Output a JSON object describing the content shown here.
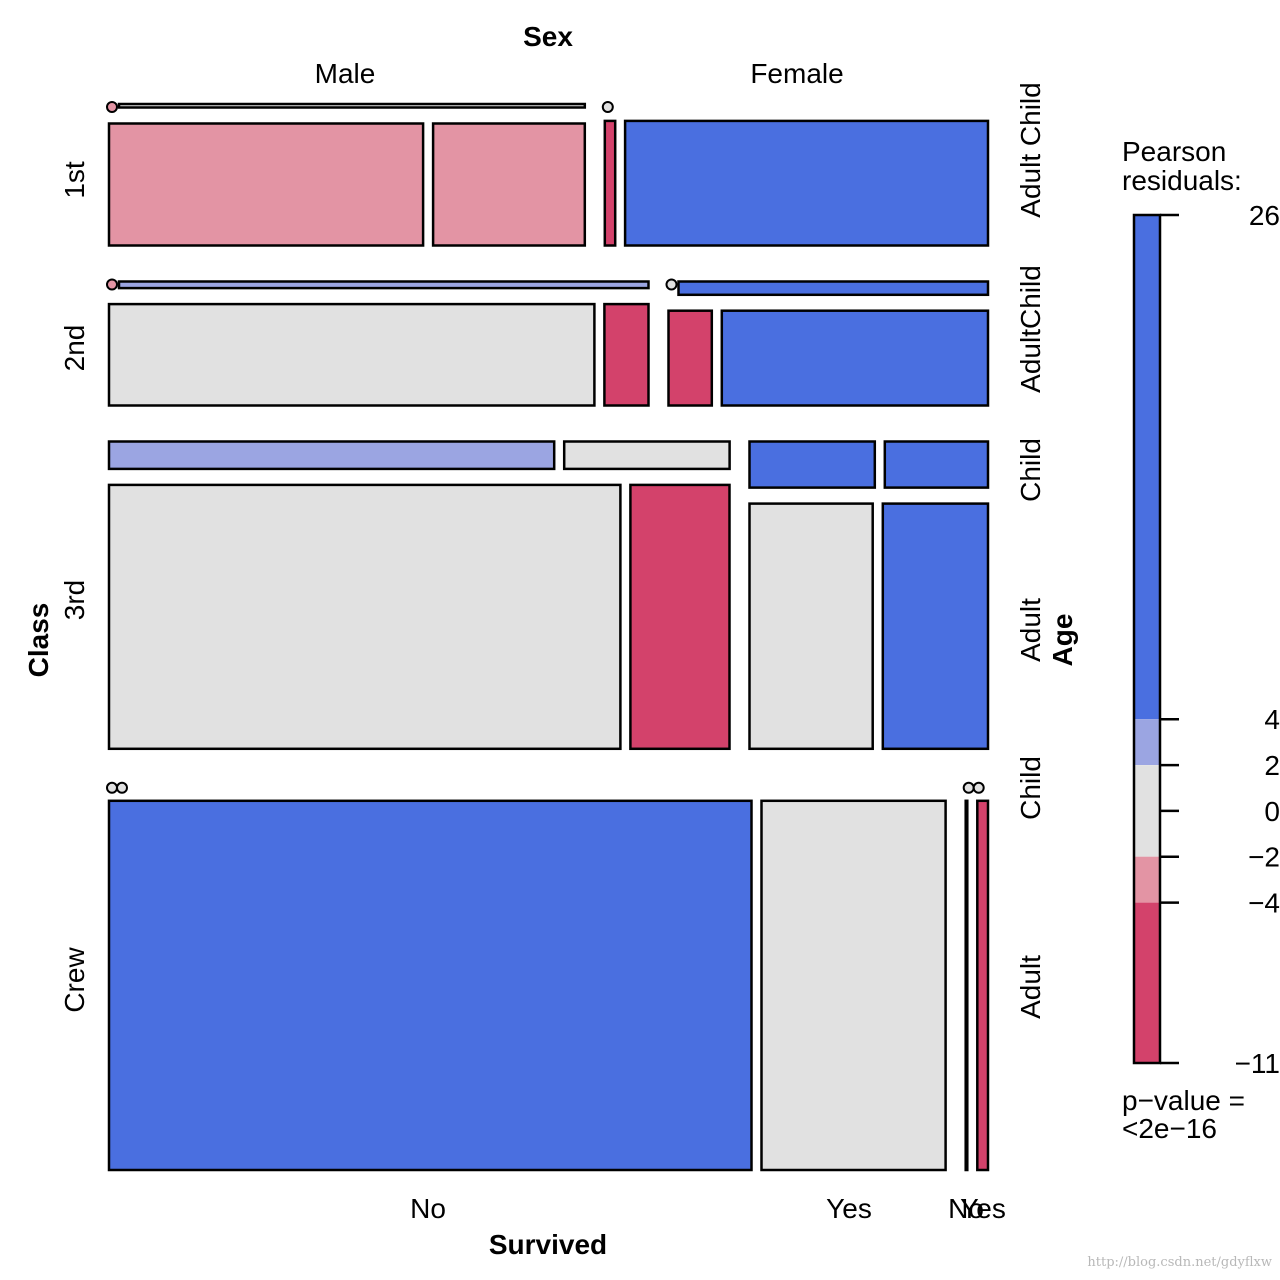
{
  "chart_data": {
    "type": "mosaic",
    "dimensions": [
      "Class",
      "Sex",
      "Age",
      "Survived"
    ],
    "axis_titles": {
      "sex": "Sex",
      "class": "Class",
      "age": "Age",
      "survived": "Survived"
    },
    "sex_levels": [
      "Male",
      "Female"
    ],
    "class_levels": [
      "1st",
      "2nd",
      "3rd",
      "Crew"
    ],
    "age_side_labels": [
      {
        "text": "Adult Child",
        "class": "1st"
      },
      {
        "text": "AdultChild",
        "class": "2nd"
      },
      {
        "text": "Child",
        "class": "3rd"
      },
      {
        "text": "Adult",
        "class": "3rd"
      },
      {
        "text": "Child",
        "class": "Crew"
      },
      {
        "text": "Adult",
        "class": "Crew"
      }
    ],
    "survived_tick_labels": [
      "No",
      "Yes",
      "No",
      "Yes"
    ],
    "cells": [
      {
        "class": "1st",
        "sex": "Male",
        "age": "Child",
        "survived": "No",
        "count": 0,
        "residual": -3
      },
      {
        "class": "1st",
        "sex": "Male",
        "age": "Child",
        "survived": "Yes",
        "count": 5,
        "residual": 0
      },
      {
        "class": "1st",
        "sex": "Male",
        "age": "Adult",
        "survived": "No",
        "count": 118,
        "residual": -3
      },
      {
        "class": "1st",
        "sex": "Male",
        "age": "Adult",
        "survived": "Yes",
        "count": 57,
        "residual": -3
      },
      {
        "class": "1st",
        "sex": "Female",
        "age": "Child",
        "survived": "No",
        "count": 0,
        "residual": 0
      },
      {
        "class": "1st",
        "sex": "Female",
        "age": "Child",
        "survived": "Yes",
        "count": 1,
        "residual": 0
      },
      {
        "class": "1st",
        "sex": "Female",
        "age": "Adult",
        "survived": "No",
        "count": 4,
        "residual": -6
      },
      {
        "class": "1st",
        "sex": "Female",
        "age": "Adult",
        "survived": "Yes",
        "count": 140,
        "residual": 10
      },
      {
        "class": "2nd",
        "sex": "Male",
        "age": "Child",
        "survived": "No",
        "count": 0,
        "residual": -3
      },
      {
        "class": "2nd",
        "sex": "Male",
        "age": "Child",
        "survived": "Yes",
        "count": 11,
        "residual": 3
      },
      {
        "class": "2nd",
        "sex": "Male",
        "age": "Adult",
        "survived": "No",
        "count": 154,
        "residual": 0
      },
      {
        "class": "2nd",
        "sex": "Male",
        "age": "Adult",
        "survived": "Yes",
        "count": 14,
        "residual": -6
      },
      {
        "class": "2nd",
        "sex": "Female",
        "age": "Child",
        "survived": "No",
        "count": 0,
        "residual": 0
      },
      {
        "class": "2nd",
        "sex": "Female",
        "age": "Child",
        "survived": "Yes",
        "count": 13,
        "residual": 6
      },
      {
        "class": "2nd",
        "sex": "Female",
        "age": "Adult",
        "survived": "No",
        "count": 13,
        "residual": -6
      },
      {
        "class": "2nd",
        "sex": "Female",
        "age": "Adult",
        "survived": "Yes",
        "count": 80,
        "residual": 10
      },
      {
        "class": "3rd",
        "sex": "Male",
        "age": "Child",
        "survived": "No",
        "count": 35,
        "residual": 3
      },
      {
        "class": "3rd",
        "sex": "Male",
        "age": "Child",
        "survived": "Yes",
        "count": 13,
        "residual": 0
      },
      {
        "class": "3rd",
        "sex": "Male",
        "age": "Adult",
        "survived": "No",
        "count": 387,
        "residual": 0
      },
      {
        "class": "3rd",
        "sex": "Male",
        "age": "Adult",
        "survived": "Yes",
        "count": 75,
        "residual": -6
      },
      {
        "class": "3rd",
        "sex": "Female",
        "age": "Child",
        "survived": "No",
        "count": 17,
        "residual": 6
      },
      {
        "class": "3rd",
        "sex": "Female",
        "age": "Child",
        "survived": "Yes",
        "count": 14,
        "residual": 6
      },
      {
        "class": "3rd",
        "sex": "Female",
        "age": "Adult",
        "survived": "No",
        "count": 89,
        "residual": 0
      },
      {
        "class": "3rd",
        "sex": "Female",
        "age": "Adult",
        "survived": "Yes",
        "count": 76,
        "residual": 10
      },
      {
        "class": "Crew",
        "sex": "Male",
        "age": "Child",
        "survived": "No",
        "count": 0,
        "residual": 0
      },
      {
        "class": "Crew",
        "sex": "Male",
        "age": "Child",
        "survived": "Yes",
        "count": 0,
        "residual": 0
      },
      {
        "class": "Crew",
        "sex": "Male",
        "age": "Adult",
        "survived": "No",
        "count": 670,
        "residual": 26
      },
      {
        "class": "Crew",
        "sex": "Male",
        "age": "Adult",
        "survived": "Yes",
        "count": 192,
        "residual": 0
      },
      {
        "class": "Crew",
        "sex": "Female",
        "age": "Child",
        "survived": "No",
        "count": 0,
        "residual": 0
      },
      {
        "class": "Crew",
        "sex": "Female",
        "age": "Child",
        "survived": "Yes",
        "count": 0,
        "residual": 0
      },
      {
        "class": "Crew",
        "sex": "Female",
        "age": "Adult",
        "survived": "No",
        "count": 3,
        "residual": 0
      },
      {
        "class": "Crew",
        "sex": "Female",
        "age": "Adult",
        "survived": "Yes",
        "count": 20,
        "residual": -6
      }
    ],
    "legend": {
      "title_line1": "Pearson",
      "title_line2": "residuals:",
      "range": [
        -11,
        26
      ],
      "ticks": [
        26,
        4,
        2,
        0,
        -2,
        -4,
        -11
      ],
      "tick_labels": [
        "26",
        "4",
        "2",
        "0",
        "−2",
        "−4",
        "−11"
      ],
      "bands": [
        {
          "from": 4,
          "to": 26,
          "color": "#4a6fe0"
        },
        {
          "from": 2,
          "to": 4,
          "color": "#9ba5e2"
        },
        {
          "from": -2,
          "to": 2,
          "color": "#e1e1e1"
        },
        {
          "from": -4,
          "to": -2,
          "color": "#e394a4"
        },
        {
          "from": -11,
          "to": -4,
          "color": "#d3426b"
        }
      ],
      "pvalue_line1": "p−value =",
      "pvalue_line2": "<2e−16"
    },
    "colors": {
      "strong_positive": "#4a6fe0",
      "weak_positive": "#9ba5e2",
      "neutral": "#e1e1e1",
      "weak_negative": "#e394a4",
      "strong_negative": "#d3426b",
      "border": "#000000"
    }
  },
  "watermark": "http://blog.csdn.net/gdyflxw"
}
